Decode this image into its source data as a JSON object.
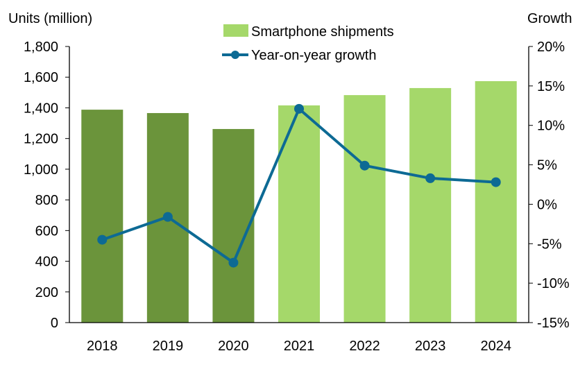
{
  "chart_data": {
    "type": "bar+line",
    "categories": [
      "2018",
      "2019",
      "2020",
      "2021",
      "2022",
      "2023",
      "2024"
    ],
    "series": [
      {
        "name": "Smartphone shipments",
        "type": "bar",
        "axis": "left",
        "values": [
          1388,
          1366,
          1262,
          1416,
          1483,
          1529,
          1574
        ],
        "colors": [
          "#6b943b",
          "#6b943b",
          "#6b943b",
          "#a5d86a",
          "#a5d86a",
          "#a5d86a",
          "#a5d86a"
        ]
      },
      {
        "name": "Year-on-year growth",
        "type": "line",
        "axis": "right",
        "values": [
          -4.5,
          -1.6,
          -7.4,
          12.1,
          4.9,
          3.3,
          2.8
        ],
        "color": "#0d6a94"
      }
    ],
    "ylabel": "Units (million)",
    "ylabel_right": "Growth",
    "ylim": [
      0,
      1800
    ],
    "ylim_right": [
      -15,
      20
    ],
    "yticks": [
      "0",
      "200",
      "400",
      "600",
      "800",
      "1,000",
      "1,200",
      "1,400",
      "1,600",
      "1,800"
    ],
    "yticks_right": [
      "-15%",
      "-10%",
      "-5%",
      "0%",
      "5%",
      "10%",
      "15%",
      "20%"
    ],
    "legend": [
      "Smartphone shipments",
      "Year-on-year growth"
    ],
    "legend_placement": "top-center",
    "grid": false
  }
}
